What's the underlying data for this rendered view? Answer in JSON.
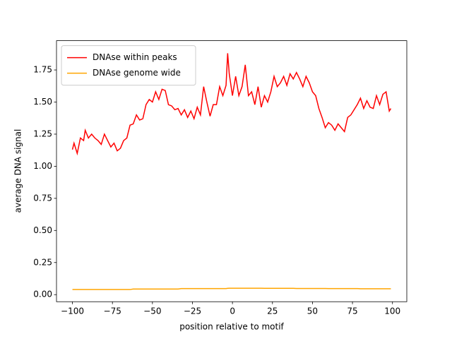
{
  "chart_data": {
    "type": "line",
    "xlabel": "position relative to motif",
    "ylabel": "average DNA signal",
    "x": [
      -100,
      -99,
      -97,
      -95,
      -93,
      -92,
      -90,
      -88,
      -86,
      -84,
      -82,
      -80,
      -78,
      -76,
      -74,
      -72,
      -70,
      -68,
      -66,
      -64,
      -62,
      -60,
      -58,
      -56,
      -54,
      -52,
      -50,
      -48,
      -46,
      -44,
      -42,
      -40,
      -38,
      -36,
      -34,
      -32,
      -30,
      -28,
      -26,
      -24,
      -22,
      -20,
      -18,
      -16,
      -14,
      -12,
      -10,
      -8,
      -6,
      -4,
      -3,
      -2,
      0,
      2,
      4,
      6,
      8,
      10,
      12,
      14,
      16,
      18,
      20,
      22,
      24,
      26,
      28,
      30,
      32,
      34,
      36,
      38,
      40,
      42,
      44,
      46,
      48,
      50,
      52,
      54,
      56,
      58,
      60,
      62,
      64,
      66,
      68,
      70,
      72,
      74,
      76,
      78,
      80,
      82,
      84,
      86,
      88,
      90,
      92,
      94,
      96,
      98,
      99
    ],
    "series": [
      {
        "name": "DNAse within peaks",
        "color": "#ff0000",
        "values": [
          1.13,
          1.18,
          1.1,
          1.22,
          1.2,
          1.28,
          1.22,
          1.25,
          1.22,
          1.2,
          1.17,
          1.25,
          1.2,
          1.15,
          1.18,
          1.12,
          1.14,
          1.2,
          1.22,
          1.32,
          1.33,
          1.4,
          1.36,
          1.37,
          1.48,
          1.52,
          1.5,
          1.58,
          1.52,
          1.6,
          1.59,
          1.48,
          1.47,
          1.44,
          1.45,
          1.4,
          1.44,
          1.38,
          1.43,
          1.37,
          1.46,
          1.4,
          1.62,
          1.5,
          1.39,
          1.48,
          1.48,
          1.62,
          1.55,
          1.63,
          1.88,
          1.72,
          1.55,
          1.7,
          1.55,
          1.62,
          1.79,
          1.55,
          1.58,
          1.48,
          1.62,
          1.46,
          1.55,
          1.5,
          1.58,
          1.7,
          1.62,
          1.65,
          1.7,
          1.63,
          1.72,
          1.68,
          1.73,
          1.68,
          1.62,
          1.7,
          1.65,
          1.58,
          1.55,
          1.45,
          1.38,
          1.3,
          1.34,
          1.32,
          1.28,
          1.33,
          1.3,
          1.27,
          1.38,
          1.4,
          1.44,
          1.48,
          1.53,
          1.45,
          1.51,
          1.46,
          1.45,
          1.55,
          1.48,
          1.56,
          1.58,
          1.43,
          1.45
        ]
      },
      {
        "name": "DNAse genome wide",
        "color": "#ffa500",
        "values": [
          0.04,
          0.04,
          0.04,
          0.04,
          0.04,
          0.04,
          0.04,
          0.04,
          0.04,
          0.04,
          0.04,
          0.04,
          0.04,
          0.04,
          0.04,
          0.04,
          0.04,
          0.04,
          0.04,
          0.04,
          0.044,
          0.044,
          0.044,
          0.044,
          0.044,
          0.044,
          0.044,
          0.044,
          0.044,
          0.044,
          0.044,
          0.044,
          0.044,
          0.044,
          0.044,
          0.047,
          0.047,
          0.047,
          0.047,
          0.047,
          0.047,
          0.047,
          0.047,
          0.047,
          0.047,
          0.047,
          0.047,
          0.047,
          0.047,
          0.047,
          0.049,
          0.05,
          0.05,
          0.05,
          0.05,
          0.05,
          0.05,
          0.05,
          0.05,
          0.05,
          0.05,
          0.05,
          0.049,
          0.049,
          0.049,
          0.049,
          0.049,
          0.049,
          0.049,
          0.049,
          0.049,
          0.049,
          0.048,
          0.048,
          0.048,
          0.048,
          0.048,
          0.048,
          0.048,
          0.048,
          0.048,
          0.048,
          0.047,
          0.047,
          0.047,
          0.047,
          0.047,
          0.047,
          0.047,
          0.047,
          0.047,
          0.047,
          0.046,
          0.046,
          0.046,
          0.046,
          0.046,
          0.046,
          0.046,
          0.046,
          0.046,
          0.046,
          0.046
        ]
      }
    ],
    "xlim": [
      -109.95,
      108.95
    ],
    "ylim": [
      -0.055,
      1.978
    ],
    "xticks": [
      {
        "value": -100,
        "label": "−100"
      },
      {
        "value": -75,
        "label": "−75"
      },
      {
        "value": -50,
        "label": "−50"
      },
      {
        "value": -25,
        "label": "−25"
      },
      0,
      25,
      50,
      75,
      100
    ],
    "yticks": [
      {
        "value": 0,
        "label": "0.00"
      },
      {
        "value": 0.25,
        "label": "0.25"
      },
      {
        "value": 0.5,
        "label": "0.50"
      },
      {
        "value": 0.75,
        "label": "0.75"
      },
      {
        "value": 1,
        "label": "1.00"
      },
      {
        "value": 1.25,
        "label": "1.25"
      },
      {
        "value": 1.5,
        "label": "1.50"
      },
      {
        "value": 1.75,
        "label": "1.75"
      }
    ],
    "grid": false,
    "legend": "upper left"
  }
}
